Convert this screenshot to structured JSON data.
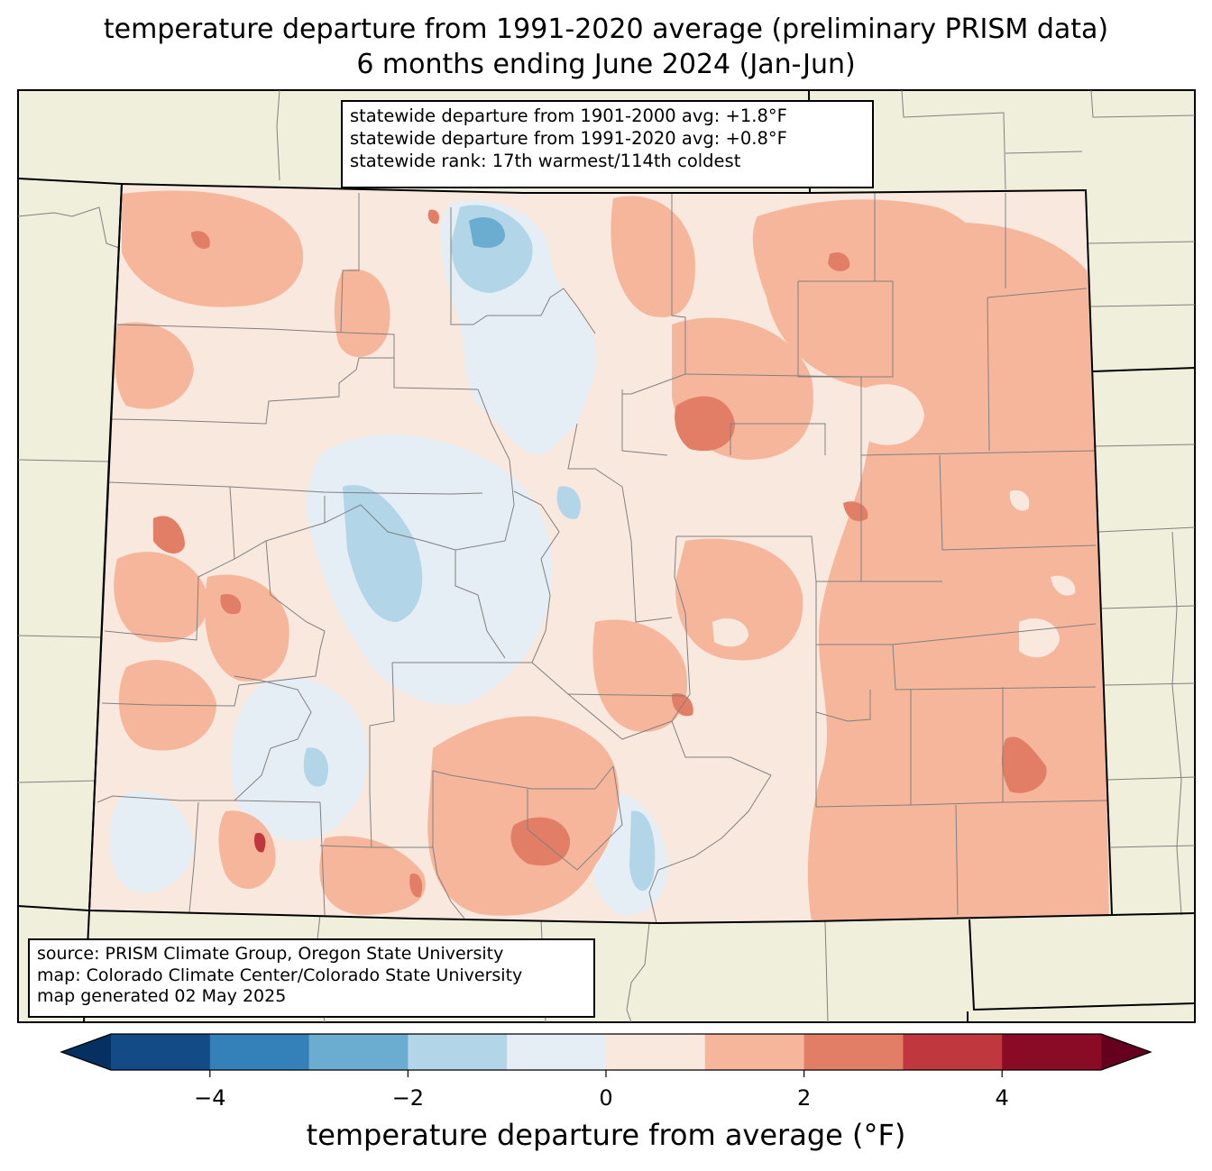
{
  "title": {
    "line1": "temperature departure from 1991-2020 average (preliminary PRISM data)",
    "line2": "6 months ending June 2024 (Jan-Jun)"
  },
  "stats": {
    "line1": "statewide departure from 1901-2000 avg: +1.8°F",
    "line2": "statewide departure from 1991-2020 avg: +0.8°F",
    "line3": "statewide rank: 17th warmest/114th coldest"
  },
  "source": {
    "line1": "source: PRISM Climate Group, Oregon State University",
    "line2": "map: Colorado Climate Center/Colorado State University",
    "line3": "map generated 02 May 2025"
  },
  "colorbar": {
    "label": "temperature departure from average (°F)",
    "ticks": [
      {
        "value": -4,
        "label": "−4"
      },
      {
        "value": -2,
        "label": "−2"
      },
      {
        "value": 0,
        "label": "0"
      },
      {
        "value": 2,
        "label": "2"
      },
      {
        "value": 4,
        "label": "4"
      }
    ],
    "bins": [
      {
        "from": -5,
        "to": -4,
        "color": "#134b87"
      },
      {
        "from": -4,
        "to": -3,
        "color": "#3480b9"
      },
      {
        "from": -3,
        "to": -2,
        "color": "#6bacd1"
      },
      {
        "from": -2,
        "to": -1,
        "color": "#b2d5e7"
      },
      {
        "from": -1,
        "to": 0,
        "color": "#e5eef4"
      },
      {
        "from": 0,
        "to": 1,
        "color": "#f9e8de"
      },
      {
        "from": 1,
        "to": 2,
        "color": "#f6b69b"
      },
      {
        "from": 2,
        "to": 3,
        "color": "#e27e66"
      },
      {
        "from": 3,
        "to": 4,
        "color": "#c0383d"
      },
      {
        "from": 4,
        "to": 5,
        "color": "#8a0b25"
      }
    ],
    "under_color": "#063061",
    "over_color": "#65001e",
    "range": [
      -5,
      5
    ]
  },
  "colors": {
    "land": "#efefdc",
    "state_border": "#000000",
    "county_line": "#808080"
  }
}
